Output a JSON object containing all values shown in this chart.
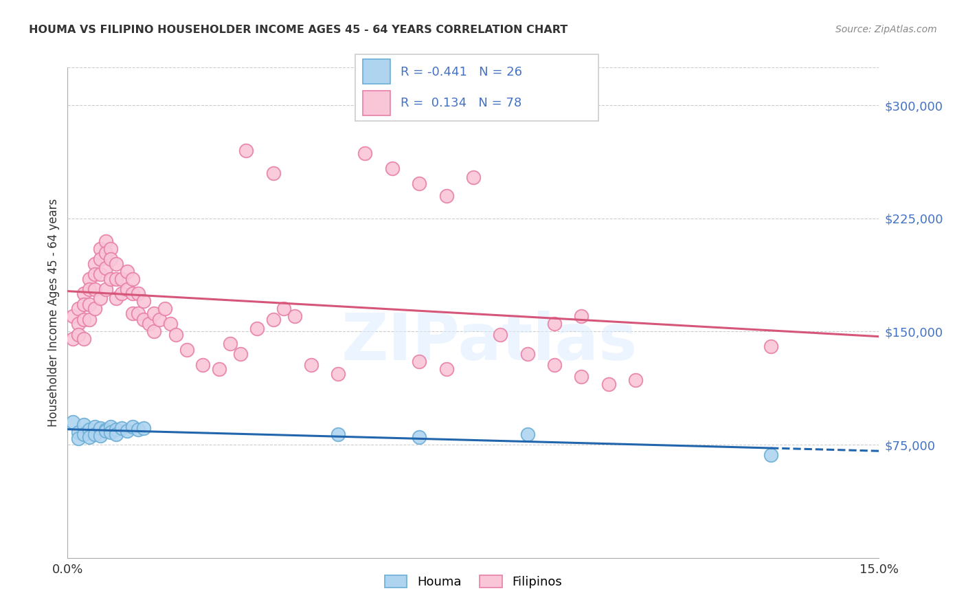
{
  "title": "HOUMA VS FILIPINO HOUSEHOLDER INCOME AGES 45 - 64 YEARS CORRELATION CHART",
  "source": "Source: ZipAtlas.com",
  "ylabel": "Householder Income Ages 45 - 64 years",
  "xlim": [
    0.0,
    0.15
  ],
  "ylim": [
    0,
    325000
  ],
  "yticks": [
    75000,
    150000,
    225000,
    300000
  ],
  "ytick_labels": [
    "$75,000",
    "$150,000",
    "$225,000",
    "$300,000"
  ],
  "houma_marker_face": "#aed4f0",
  "houma_marker_edge": "#6baed6",
  "filipino_marker_face": "#f9c6d8",
  "filipino_marker_edge": "#e87fa8",
  "trend_houma_color": "#2166ac",
  "trend_filipino_color": "#d6567a",
  "legend_text_color": "#4472c4",
  "legend_houma_R": "-0.441",
  "legend_houma_N": "26",
  "legend_filipino_R": "0.134",
  "legend_filipino_N": "78",
  "watermark": "ZIPatlas",
  "houma_x": [
    0.001,
    0.002,
    0.002,
    0.003,
    0.003,
    0.004,
    0.004,
    0.005,
    0.005,
    0.006,
    0.006,
    0.007,
    0.007,
    0.008,
    0.008,
    0.009,
    0.009,
    0.01,
    0.011,
    0.012,
    0.013,
    0.014,
    0.05,
    0.065,
    0.085,
    0.13
  ],
  "houma_y": [
    90000,
    83000,
    79000,
    88000,
    82000,
    85000,
    80000,
    87000,
    82000,
    86000,
    81000,
    85000,
    84000,
    87000,
    83000,
    85000,
    82000,
    86000,
    84000,
    87000,
    85000,
    86000,
    82000,
    80000,
    82000,
    68000
  ],
  "filipino_x": [
    0.001,
    0.001,
    0.002,
    0.002,
    0.002,
    0.003,
    0.003,
    0.003,
    0.003,
    0.004,
    0.004,
    0.004,
    0.004,
    0.005,
    0.005,
    0.005,
    0.005,
    0.006,
    0.006,
    0.006,
    0.006,
    0.007,
    0.007,
    0.007,
    0.007,
    0.008,
    0.008,
    0.008,
    0.009,
    0.009,
    0.009,
    0.01,
    0.01,
    0.011,
    0.011,
    0.012,
    0.012,
    0.012,
    0.013,
    0.013,
    0.014,
    0.014,
    0.015,
    0.016,
    0.016,
    0.017,
    0.018,
    0.019,
    0.02,
    0.022,
    0.025,
    0.028,
    0.03,
    0.032,
    0.035,
    0.038,
    0.04,
    0.042,
    0.045,
    0.05,
    0.033,
    0.038,
    0.055,
    0.06,
    0.065,
    0.07,
    0.075,
    0.08,
    0.09,
    0.095,
    0.085,
    0.09,
    0.095,
    0.1,
    0.105,
    0.065,
    0.07,
    0.13
  ],
  "filipino_y": [
    160000,
    145000,
    155000,
    165000,
    148000,
    175000,
    168000,
    158000,
    145000,
    185000,
    178000,
    168000,
    158000,
    195000,
    188000,
    178000,
    165000,
    205000,
    198000,
    188000,
    172000,
    210000,
    202000,
    192000,
    178000,
    205000,
    198000,
    185000,
    195000,
    185000,
    172000,
    185000,
    175000,
    190000,
    178000,
    185000,
    175000,
    162000,
    175000,
    162000,
    170000,
    158000,
    155000,
    162000,
    150000,
    158000,
    165000,
    155000,
    148000,
    138000,
    128000,
    125000,
    142000,
    135000,
    152000,
    158000,
    165000,
    160000,
    128000,
    122000,
    270000,
    255000,
    268000,
    258000,
    248000,
    240000,
    252000,
    148000,
    155000,
    160000,
    135000,
    128000,
    120000,
    115000,
    118000,
    130000,
    125000,
    140000
  ]
}
